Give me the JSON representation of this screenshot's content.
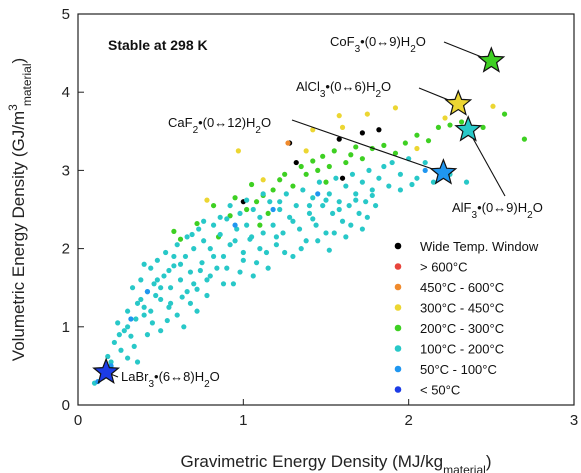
{
  "chart_data": {
    "type": "scatter",
    "annotation_box": "Stable at 298 K",
    "xlabel": "Gravimetric Energy Density (MJ/kg",
    "xlabel_sub": "material",
    "xlabel_end": ")",
    "ylabel": "Volumetric Energy Density (GJ/m",
    "ylabel_sup": "3",
    "ylabel_sub": "material",
    "ylabel_end": ")",
    "xlim": [
      0,
      3
    ],
    "ylim": [
      0,
      5
    ],
    "xticks": [
      "0",
      "1",
      "2",
      "3"
    ],
    "yticks": [
      "0",
      "1",
      "2",
      "3",
      "4",
      "5"
    ],
    "grid": false,
    "legend_position": "lower-right",
    "legend": [
      {
        "label": "Wide Temp. Window",
        "color": "#000000"
      },
      {
        "label": "> 600°C",
        "color": "#e8453c"
      },
      {
        "label": "450°C - 600°C",
        "color": "#f08a2c"
      },
      {
        "label": "300°C - 450°C",
        "color": "#ecd632"
      },
      {
        "label": "200°C - 300°C",
        "color": "#3ed022"
      },
      {
        "label": "100°C - 200°C",
        "color": "#28c8c8"
      },
      {
        "label": "50°C - 100°C",
        "color": "#1f96f0"
      },
      {
        "label": "< 50°C",
        "color": "#1c3ce6"
      }
    ],
    "series": [
      {
        "color": "#000000",
        "points": [
          [
            1.0,
            2.6
          ],
          [
            1.28,
            3.35
          ],
          [
            1.32,
            3.1
          ],
          [
            1.58,
            3.4
          ],
          [
            1.72,
            3.48
          ],
          [
            1.82,
            3.52
          ],
          [
            1.6,
            2.9
          ]
        ]
      },
      {
        "color": "#f08a2c",
        "points": [
          [
            1.27,
            3.35
          ]
        ]
      },
      {
        "color": "#ecd632",
        "points": [
          [
            0.78,
            2.62
          ],
          [
            0.97,
            3.25
          ],
          [
            1.42,
            3.52
          ],
          [
            1.58,
            3.7
          ],
          [
            1.6,
            3.55
          ],
          [
            1.75,
            3.72
          ],
          [
            1.92,
            3.8
          ],
          [
            2.05,
            3.28
          ],
          [
            2.22,
            3.67
          ],
          [
            2.51,
            3.82
          ],
          [
            1.12,
            2.88
          ],
          [
            1.38,
            3.25
          ]
        ]
      },
      {
        "color": "#3ed022",
        "points": [
          [
            0.58,
            2.22
          ],
          [
            0.62,
            2.12
          ],
          [
            0.72,
            2.32
          ],
          [
            0.82,
            2.55
          ],
          [
            0.92,
            2.42
          ],
          [
            0.95,
            2.65
          ],
          [
            1.02,
            2.5
          ],
          [
            1.05,
            2.82
          ],
          [
            1.08,
            2.6
          ],
          [
            1.12,
            2.68
          ],
          [
            1.18,
            2.75
          ],
          [
            1.22,
            2.88
          ],
          [
            1.25,
            2.95
          ],
          [
            1.3,
            2.8
          ],
          [
            1.35,
            3.05
          ],
          [
            1.38,
            2.95
          ],
          [
            1.42,
            3.12
          ],
          [
            1.45,
            3.0
          ],
          [
            1.48,
            3.18
          ],
          [
            1.52,
            3.05
          ],
          [
            1.55,
            3.25
          ],
          [
            1.62,
            3.1
          ],
          [
            1.65,
            3.2
          ],
          [
            1.68,
            3.3
          ],
          [
            1.72,
            3.15
          ],
          [
            1.78,
            3.28
          ],
          [
            1.85,
            3.32
          ],
          [
            1.92,
            3.22
          ],
          [
            1.98,
            3.35
          ],
          [
            2.05,
            3.45
          ],
          [
            2.12,
            3.38
          ],
          [
            2.18,
            3.55
          ],
          [
            2.25,
            3.58
          ],
          [
            2.32,
            3.62
          ],
          [
            2.45,
            3.55
          ],
          [
            2.58,
            3.72
          ],
          [
            2.7,
            3.4
          ],
          [
            1.1,
            2.3
          ],
          [
            1.5,
            2.85
          ],
          [
            0.85,
            2.15
          ],
          [
            1.15,
            2.45
          ]
        ]
      },
      {
        "color": "#28c8c8",
        "points": [
          [
            0.1,
            0.28
          ],
          [
            0.14,
            0.45
          ],
          [
            0.18,
            0.62
          ],
          [
            0.22,
            0.8
          ],
          [
            0.24,
            1.05
          ],
          [
            0.26,
            0.7
          ],
          [
            0.28,
            0.95
          ],
          [
            0.3,
            1.2
          ],
          [
            0.32,
            0.88
          ],
          [
            0.33,
            1.5
          ],
          [
            0.35,
            1.1
          ],
          [
            0.36,
            1.3
          ],
          [
            0.38,
            1.6
          ],
          [
            0.4,
            1.25
          ],
          [
            0.42,
            1.45
          ],
          [
            0.44,
            1.75
          ],
          [
            0.45,
            1.05
          ],
          [
            0.46,
            1.55
          ],
          [
            0.48,
            1.85
          ],
          [
            0.5,
            1.35
          ],
          [
            0.52,
            1.65
          ],
          [
            0.53,
            1.95
          ],
          [
            0.55,
            1.25
          ],
          [
            0.56,
            1.5
          ],
          [
            0.58,
            1.78
          ],
          [
            0.6,
            2.05
          ],
          [
            0.62,
            1.6
          ],
          [
            0.63,
            1.38
          ],
          [
            0.65,
            1.9
          ],
          [
            0.66,
            2.15
          ],
          [
            0.68,
            1.7
          ],
          [
            0.7,
            2.0
          ],
          [
            0.72,
            1.48
          ],
          [
            0.73,
            2.25
          ],
          [
            0.75,
            1.82
          ],
          [
            0.76,
            2.1
          ],
          [
            0.78,
            1.6
          ],
          [
            0.8,
            2.0
          ],
          [
            0.82,
            2.3
          ],
          [
            0.84,
            1.75
          ],
          [
            0.86,
            2.18
          ],
          [
            0.88,
            1.9
          ],
          [
            0.9,
            2.38
          ],
          [
            0.92,
            2.05
          ],
          [
            0.94,
            1.55
          ],
          [
            0.96,
            2.25
          ],
          [
            0.98,
            2.45
          ],
          [
            1.0,
            1.95
          ],
          [
            1.02,
            2.3
          ],
          [
            1.04,
            2.12
          ],
          [
            1.06,
            2.5
          ],
          [
            1.08,
            1.82
          ],
          [
            1.1,
            2.4
          ],
          [
            1.12,
            2.2
          ],
          [
            1.14,
            1.95
          ],
          [
            1.16,
            2.6
          ],
          [
            1.18,
            2.3
          ],
          [
            1.2,
            2.05
          ],
          [
            1.22,
            2.5
          ],
          [
            1.24,
            2.2
          ],
          [
            1.26,
            2.7
          ],
          [
            1.28,
            2.4
          ],
          [
            1.3,
            1.9
          ],
          [
            1.32,
            2.55
          ],
          [
            1.34,
            2.25
          ],
          [
            1.36,
            2.75
          ],
          [
            1.38,
            2.1
          ],
          [
            1.4,
            2.45
          ],
          [
            1.42,
            2.65
          ],
          [
            1.44,
            2.3
          ],
          [
            1.46,
            2.85
          ],
          [
            1.48,
            2.55
          ],
          [
            1.5,
            2.2
          ],
          [
            1.52,
            2.7
          ],
          [
            1.54,
            2.45
          ],
          [
            1.56,
            2.9
          ],
          [
            1.58,
            2.6
          ],
          [
            1.6,
            2.35
          ],
          [
            1.62,
            2.8
          ],
          [
            1.64,
            2.55
          ],
          [
            1.66,
            2.95
          ],
          [
            1.68,
            2.7
          ],
          [
            1.7,
            2.45
          ],
          [
            1.72,
            2.85
          ],
          [
            1.74,
            2.6
          ],
          [
            1.76,
            3.0
          ],
          [
            1.78,
            2.75
          ],
          [
            1.8,
            2.55
          ],
          [
            1.82,
            2.9
          ],
          [
            1.85,
            3.05
          ],
          [
            1.88,
            2.8
          ],
          [
            1.9,
            3.1
          ],
          [
            1.95,
            2.95
          ],
          [
            2.0,
            3.15
          ],
          [
            2.05,
            2.9
          ],
          [
            2.1,
            3.1
          ],
          [
            2.15,
            2.85
          ],
          [
            2.35,
            2.85
          ],
          [
            0.2,
            0.55
          ],
          [
            0.34,
            0.75
          ],
          [
            0.5,
            0.95
          ],
          [
            0.6,
            1.15
          ],
          [
            0.68,
            1.3
          ],
          [
            0.78,
            1.4
          ],
          [
            0.88,
            1.55
          ],
          [
            0.98,
            1.7
          ],
          [
            1.06,
            1.65
          ],
          [
            1.15,
            1.75
          ],
          [
            0.42,
            0.9
          ],
          [
            0.54,
            1.08
          ],
          [
            0.64,
            1.0
          ],
          [
            0.72,
            1.2
          ],
          [
            0.3,
            0.6
          ],
          [
            0.36,
            0.55
          ],
          [
            1.25,
            1.95
          ],
          [
            1.35,
            2.0
          ],
          [
            1.45,
            2.1
          ],
          [
            1.55,
            2.2
          ],
          [
            1.65,
            2.3
          ],
          [
            1.75,
            2.4
          ],
          [
            1.3,
            2.35
          ],
          [
            1.4,
            2.55
          ],
          [
            1.5,
            2.62
          ],
          [
            1.2,
            2.15
          ],
          [
            1.1,
            2.0
          ],
          [
            1.0,
            1.85
          ],
          [
            0.9,
            1.75
          ],
          [
            0.8,
            1.65
          ],
          [
            0.7,
            1.55
          ],
          [
            0.62,
            1.8
          ],
          [
            0.55,
            1.72
          ],
          [
            0.47,
            1.4
          ],
          [
            0.4,
            1.15
          ],
          [
            0.25,
            0.9
          ],
          [
            0.15,
            0.35
          ],
          [
            0.92,
            2.55
          ],
          [
            1.02,
            2.62
          ],
          [
            1.12,
            2.7
          ],
          [
            1.22,
            2.6
          ],
          [
            0.86,
            2.4
          ],
          [
            0.76,
            2.35
          ],
          [
            0.69,
            2.18
          ],
          [
            0.58,
            1.9
          ],
          [
            0.48,
            1.6
          ],
          [
            0.38,
            1.35
          ],
          [
            0.3,
            1.0
          ],
          [
            1.58,
            2.5
          ],
          [
            1.68,
            2.62
          ],
          [
            1.78,
            2.68
          ],
          [
            1.42,
            2.38
          ],
          [
            1.62,
            2.15
          ],
          [
            1.72,
            2.25
          ],
          [
            1.52,
            1.98
          ],
          [
            1.95,
            2.75
          ],
          [
            2.02,
            2.82
          ],
          [
            2.25,
            2.95
          ],
          [
            0.95,
            2.1
          ],
          [
            1.05,
            2.15
          ],
          [
            0.82,
            1.9
          ],
          [
            0.74,
            1.72
          ],
          [
            0.66,
            1.45
          ],
          [
            0.56,
            1.3
          ],
          [
            0.44,
            1.2
          ],
          [
            0.5,
            1.5
          ],
          [
            0.4,
            1.8
          ]
        ]
      },
      {
        "color": "#1f96f0",
        "points": [
          [
            0.12,
            0.3
          ],
          [
            0.2,
            0.5
          ],
          [
            0.42,
            1.45
          ],
          [
            0.95,
            2.3
          ],
          [
            1.18,
            2.5
          ],
          [
            1.45,
            2.7
          ],
          [
            2.1,
            3.0
          ],
          [
            0.32,
            1.1
          ]
        ]
      }
    ],
    "highlights": [
      {
        "label": "CoF",
        "sub": "3",
        "rest": "•(0↔9)H",
        "sub2": "2",
        "end": "O",
        "x": 2.5,
        "y": 4.4,
        "color": "#3ed022"
      },
      {
        "label": "AlCl",
        "sub": "3",
        "rest": "•(0↔6)H",
        "sub2": "2",
        "end": "O",
        "x": 2.3,
        "y": 3.85,
        "color": "#ecd632"
      },
      {
        "label": "AlF",
        "sub": "3",
        "rest": "•(0↔9)H",
        "sub2": "2",
        "end": "O",
        "x": 2.36,
        "y": 3.52,
        "color": "#28c8c8"
      },
      {
        "label": "CaF",
        "sub": "2",
        "rest": "•(0↔12)H",
        "sub2": "2",
        "end": "O",
        "x": 2.21,
        "y": 2.97,
        "color": "#1f96f0"
      },
      {
        "label": "LaBr",
        "sub": "3",
        "rest": "•(6↔8)H",
        "sub2": "2",
        "end": "O",
        "x": 0.17,
        "y": 0.42,
        "color": "#1c3ce6"
      }
    ]
  }
}
